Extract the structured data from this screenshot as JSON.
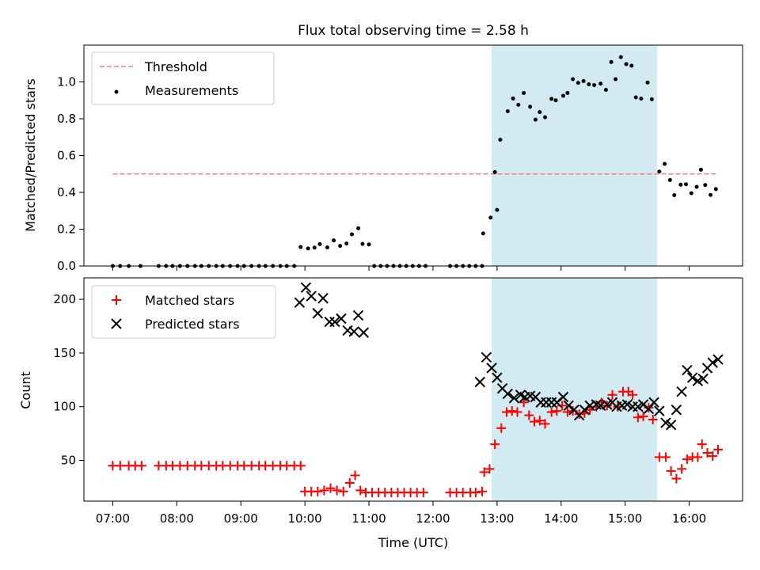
{
  "chart_data": [
    {
      "type": "scatter",
      "title": "Flux total observing time = 2.58 h",
      "xlabel": "",
      "ylabel": "Matched/Predicted stars",
      "xlim": [
        "06:33",
        "16:50"
      ],
      "ylim": [
        0,
        1.2
      ],
      "yticks": [
        "0.0",
        "0.2",
        "0.4",
        "0.6",
        "0.8",
        "1.0"
      ],
      "grid": false,
      "legend": "top-left",
      "observing_window": {
        "start": "12:55",
        "end": "15:30",
        "color": "#add8e6"
      },
      "threshold": {
        "name": "Threshold",
        "value": 0.5,
        "x_start": "07:00",
        "x_end": "16:25",
        "color": "#ff7f7f",
        "style": "dashed"
      },
      "series": [
        {
          "name": "Measurements",
          "color": "#000000",
          "marker": "dot",
          "points": [
            [
              "07:00",
              0
            ],
            [
              "07:07",
              0
            ],
            [
              "07:15",
              0
            ],
            [
              "07:26",
              0
            ],
            [
              "07:43",
              0
            ],
            [
              "07:50",
              0
            ],
            [
              "07:56",
              0
            ],
            [
              "08:03",
              0
            ],
            [
              "08:10",
              0
            ],
            [
              "08:17",
              0
            ],
            [
              "08:23",
              0
            ],
            [
              "08:30",
              0
            ],
            [
              "08:37",
              0
            ],
            [
              "08:43",
              0
            ],
            [
              "08:50",
              0
            ],
            [
              "08:57",
              0
            ],
            [
              "09:03",
              0
            ],
            [
              "09:10",
              0
            ],
            [
              "09:17",
              0
            ],
            [
              "09:23",
              0
            ],
            [
              "09:30",
              0
            ],
            [
              "09:37",
              0
            ],
            [
              "09:43",
              0
            ],
            [
              "09:50",
              0
            ],
            [
              "09:56",
              0.103
            ],
            [
              "10:03",
              0.095
            ],
            [
              "10:09",
              0.1
            ],
            [
              "10:14",
              0.119
            ],
            [
              "10:21",
              0.101
            ],
            [
              "10:27",
              0.139
            ],
            [
              "10:33",
              0.109
            ],
            [
              "10:39",
              0.122
            ],
            [
              "10:44",
              0.172
            ],
            [
              "10:50",
              0.205
            ],
            [
              "10:54",
              0.12
            ],
            [
              "11:00",
              0.117
            ],
            [
              "11:05",
              0
            ],
            [
              "11:11",
              0
            ],
            [
              "11:17",
              0
            ],
            [
              "11:23",
              0
            ],
            [
              "11:29",
              0
            ],
            [
              "11:35",
              0
            ],
            [
              "11:41",
              0
            ],
            [
              "11:47",
              0
            ],
            [
              "11:53",
              0
            ],
            [
              "12:16",
              0
            ],
            [
              "12:22",
              0
            ],
            [
              "12:28",
              0
            ],
            [
              "12:34",
              0
            ],
            [
              "12:40",
              0
            ],
            [
              "12:46",
              0
            ],
            [
              "12:47",
              0.177
            ],
            [
              "12:54",
              0.263
            ],
            [
              "13:00",
              0.305
            ],
            [
              "12:58",
              0.51
            ],
            [
              "13:03",
              0.686
            ],
            [
              "13:10",
              0.841
            ],
            [
              "13:15",
              0.91
            ],
            [
              "13:20",
              0.876
            ],
            [
              "13:25",
              0.94
            ],
            [
              "13:31",
              0.865
            ],
            [
              "13:36",
              0.795
            ],
            [
              "13:40",
              0.836
            ],
            [
              "13:45",
              0.808
            ],
            [
              "13:51",
              0.908
            ],
            [
              "13:55",
              0.9
            ],
            [
              "14:02",
              0.925
            ],
            [
              "14:06",
              0.94
            ],
            [
              "14:11",
              1.015
            ],
            [
              "14:16",
              0.995
            ],
            [
              "14:21",
              1.005
            ],
            [
              "14:26",
              0.987
            ],
            [
              "14:31",
              0.983
            ],
            [
              "14:37",
              0.991
            ],
            [
              "14:42",
              0.957
            ],
            [
              "14:47",
              1.108
            ],
            [
              "14:51",
              1.015
            ],
            [
              "14:56",
              1.135
            ],
            [
              "15:01",
              1.097
            ],
            [
              "15:06",
              1.088
            ],
            [
              "15:10",
              0.916
            ],
            [
              "15:15",
              0.909
            ],
            [
              "15:21",
              0.997
            ],
            [
              "15:25",
              0.906
            ],
            [
              "15:32",
              0.513
            ],
            [
              "15:37",
              0.555
            ],
            [
              "15:42",
              0.467
            ],
            [
              "15:46",
              0.385
            ],
            [
              "15:52",
              0.442
            ],
            [
              "15:57",
              0.444
            ],
            [
              "16:02",
              0.395
            ],
            [
              "16:07",
              0.43
            ],
            [
              "16:11",
              0.523
            ],
            [
              "16:15",
              0.44
            ],
            [
              "16:20",
              0.386
            ],
            [
              "16:25",
              0.418
            ]
          ]
        }
      ]
    },
    {
      "type": "scatter",
      "title": "",
      "xlabel": "Time (UTC)",
      "ylabel": "Count",
      "xlim": [
        "06:33",
        "16:50"
      ],
      "ylim": [
        12,
        220
      ],
      "yticks": [
        "50",
        "100",
        "150",
        "200"
      ],
      "xticks": [
        "07:00",
        "08:00",
        "09:00",
        "10:00",
        "11:00",
        "12:00",
        "13:00",
        "14:00",
        "15:00",
        "16:00"
      ],
      "grid": false,
      "legend": "top-left",
      "observing_window": {
        "start": "12:55",
        "end": "15:30",
        "color": "#add8e6"
      },
      "series": [
        {
          "name": "Matched stars",
          "color": "#ff0000",
          "marker": "plus",
          "points": [
            [
              "07:00",
              45
            ],
            [
              "07:07",
              45
            ],
            [
              "07:15",
              45
            ],
            [
              "07:21",
              45
            ],
            [
              "07:27",
              45
            ],
            [
              "07:43",
              45
            ],
            [
              "07:50",
              45
            ],
            [
              "07:56",
              45
            ],
            [
              "08:03",
              45
            ],
            [
              "08:10",
              45
            ],
            [
              "08:17",
              45
            ],
            [
              "08:23",
              45
            ],
            [
              "08:30",
              45
            ],
            [
              "08:37",
              45
            ],
            [
              "08:43",
              45
            ],
            [
              "08:50",
              45
            ],
            [
              "08:57",
              45
            ],
            [
              "09:03",
              45
            ],
            [
              "09:10",
              45
            ],
            [
              "09:17",
              45
            ],
            [
              "09:23",
              45
            ],
            [
              "09:30",
              45
            ],
            [
              "09:37",
              45
            ],
            [
              "09:43",
              45
            ],
            [
              "09:50",
              45
            ],
            [
              "09:56",
              45
            ],
            [
              "10:00",
              21
            ],
            [
              "10:06",
              21
            ],
            [
              "10:12",
              21
            ],
            [
              "10:18",
              22
            ],
            [
              "10:24",
              24
            ],
            [
              "10:30",
              22
            ],
            [
              "10:36",
              21
            ],
            [
              "10:42",
              29
            ],
            [
              "10:47",
              36
            ],
            [
              "10:52",
              22
            ],
            [
              "10:57",
              20
            ],
            [
              "11:03",
              20
            ],
            [
              "11:09",
              20
            ],
            [
              "11:15",
              20
            ],
            [
              "11:21",
              20
            ],
            [
              "11:27",
              20
            ],
            [
              "11:33",
              20
            ],
            [
              "11:39",
              20
            ],
            [
              "11:45",
              20
            ],
            [
              "11:51",
              20
            ],
            [
              "12:16",
              20
            ],
            [
              "12:22",
              20
            ],
            [
              "12:28",
              20
            ],
            [
              "12:35",
              20
            ],
            [
              "12:40",
              20
            ],
            [
              "12:46",
              21
            ],
            [
              "12:48",
              39
            ],
            [
              "12:53",
              42
            ],
            [
              "12:58",
              65
            ],
            [
              "13:04",
              80
            ],
            [
              "13:09",
              95
            ],
            [
              "13:14",
              96
            ],
            [
              "13:19",
              95
            ],
            [
              "13:25",
              104
            ],
            [
              "13:30",
              92
            ],
            [
              "13:35",
              86
            ],
            [
              "13:40",
              87
            ],
            [
              "13:45",
              84
            ],
            [
              "13:51",
              95
            ],
            [
              "13:56",
              96
            ],
            [
              "14:01",
              101
            ],
            [
              "14:06",
              95
            ],
            [
              "14:11",
              96
            ],
            [
              "14:17",
              93
            ],
            [
              "14:22",
              94
            ],
            [
              "14:27",
              97
            ],
            [
              "14:33",
              100
            ],
            [
              "14:38",
              104
            ],
            [
              "14:43",
              101
            ],
            [
              "14:48",
              111
            ],
            [
              "14:53",
              100
            ],
            [
              "14:58",
              114
            ],
            [
              "15:03",
              114
            ],
            [
              "15:07",
              111
            ],
            [
              "15:12",
              90
            ],
            [
              "15:17",
              91
            ],
            [
              "15:22",
              99
            ],
            [
              "15:26",
              88
            ],
            [
              "15:32",
              53
            ],
            [
              "15:38",
              53
            ],
            [
              "15:43",
              40
            ],
            [
              "15:48",
              33
            ],
            [
              "15:53",
              42
            ],
            [
              "15:58",
              51
            ],
            [
              "16:03",
              53
            ],
            [
              "16:08",
              53
            ],
            [
              "16:12",
              65
            ],
            [
              "16:17",
              57
            ],
            [
              "16:22",
              54
            ],
            [
              "16:27",
              60
            ]
          ]
        },
        {
          "name": "Predicted stars",
          "color": "#000000",
          "marker": "x",
          "points": [
            [
              "09:55",
              197
            ],
            [
              "10:01",
              211
            ],
            [
              "10:06",
              203
            ],
            [
              "10:12",
              187
            ],
            [
              "10:17",
              201
            ],
            [
              "10:23",
              179
            ],
            [
              "10:28",
              179
            ],
            [
              "10:34",
              182
            ],
            [
              "10:40",
              171
            ],
            [
              "10:46",
              170
            ],
            [
              "10:50",
              185
            ],
            [
              "10:55",
              169
            ],
            [
              "12:44",
              123
            ],
            [
              "12:50",
              146
            ],
            [
              "12:55",
              136
            ],
            [
              "13:00",
              127
            ],
            [
              "13:05",
              117
            ],
            [
              "13:10",
              112
            ],
            [
              "13:16",
              108
            ],
            [
              "13:22",
              111
            ],
            [
              "13:26",
              109
            ],
            [
              "13:31",
              110
            ],
            [
              "13:36",
              109
            ],
            [
              "13:41",
              104
            ],
            [
              "13:46",
              104
            ],
            [
              "13:51",
              104
            ],
            [
              "13:56",
              104
            ],
            [
              "14:02",
              109
            ],
            [
              "14:07",
              101
            ],
            [
              "14:12",
              97
            ],
            [
              "14:17",
              92
            ],
            [
              "14:22",
              97
            ],
            [
              "14:27",
              101
            ],
            [
              "14:33",
              102
            ],
            [
              "14:37",
              101
            ],
            [
              "14:43",
              102
            ],
            [
              "14:48",
              104
            ],
            [
              "14:52",
              100
            ],
            [
              "14:57",
              101
            ],
            [
              "15:02",
              102
            ],
            [
              "15:07",
              100
            ],
            [
              "15:12",
              100
            ],
            [
              "15:17",
              102
            ],
            [
              "15:22",
              98
            ],
            [
              "15:27",
              104
            ],
            [
              "15:32",
              96
            ],
            [
              "15:38",
              85
            ],
            [
              "15:43",
              83
            ],
            [
              "15:48",
              97
            ],
            [
              "15:53",
              114
            ],
            [
              "15:58",
              134
            ],
            [
              "16:03",
              127
            ],
            [
              "16:08",
              124
            ],
            [
              "16:13",
              126
            ],
            [
              "16:17",
              136
            ],
            [
              "16:22",
              141
            ],
            [
              "16:27",
              144
            ]
          ]
        }
      ]
    }
  ]
}
